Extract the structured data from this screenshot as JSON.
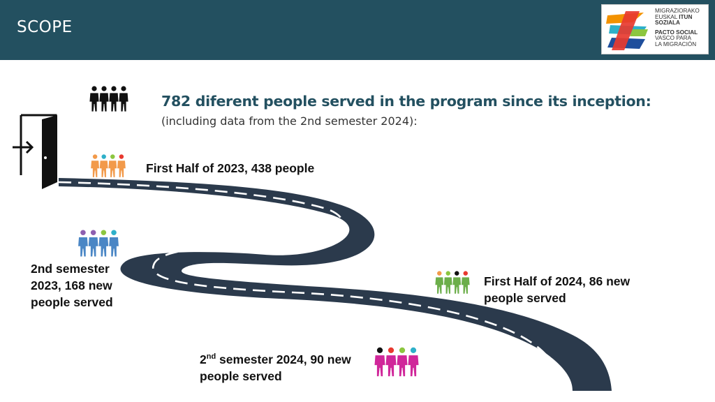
{
  "header": {
    "title": "SCOPE",
    "bg_color": "#235060"
  },
  "logo": {
    "line1": "MIGRAZIORAKO",
    "line2_regular": "EUSKAL ",
    "line2_bold": "ITUN",
    "line3": "SOZIALA",
    "line4": "PACTO SOCIAL",
    "line5": "VASCO PARA",
    "line6": "LA MIGRACIÓN",
    "colors": [
      "#e8392f",
      "#f39200",
      "#2eb0c9",
      "#1e4e9c",
      "#8cc63f"
    ]
  },
  "intro": {
    "headline": "782 diferent people served in the program since its inception:",
    "subline": "(including data from the 2nd semester 2024):",
    "icon": "group-people-icon"
  },
  "door": {
    "icon": "door-entry-icon"
  },
  "milestones": [
    {
      "text": "First Half of 2023, 438 people",
      "icon": "orange-people-group-icon",
      "color": "#f29a4a"
    },
    {
      "text": "2nd semester 2023, 168 new people served",
      "icon": "blue-people-group-icon",
      "color": "#4a86c5"
    },
    {
      "text": "First Half of 2024, 86 new people served",
      "icon": "green-people-group-icon",
      "color": "#6cae4a"
    },
    {
      "prefix": "2",
      "sup": "nd",
      "text": " semester 2024, 90 new people served",
      "icon": "magenta-people-group-icon",
      "color": "#d0279a"
    }
  ],
  "road": {
    "color": "#2b3a4c",
    "dash_color": "#ffffff"
  }
}
